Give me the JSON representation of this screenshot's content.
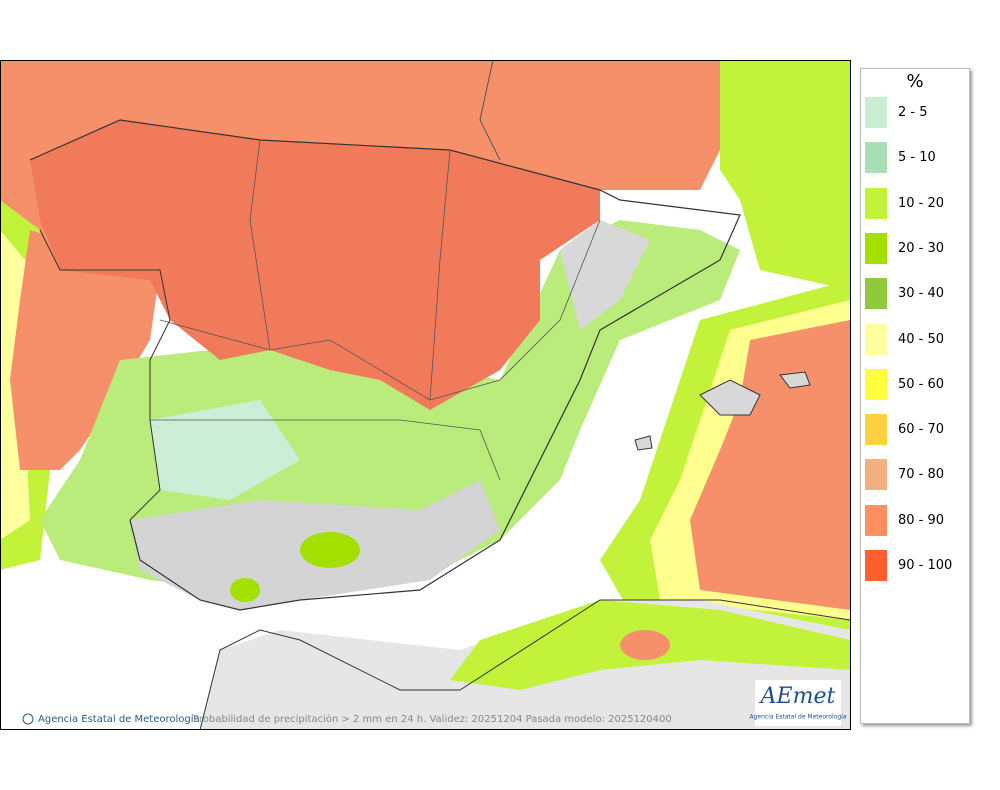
{
  "legend": {
    "title": "%",
    "items": [
      {
        "label": "2 - 5",
        "color": "#c9eed3"
      },
      {
        "label": "5 - 10",
        "color": "#a9dfb4"
      },
      {
        "label": "10 - 20",
        "color": "#c2f23a"
      },
      {
        "label": "20 - 30",
        "color": "#a3e000"
      },
      {
        "label": "30 - 40",
        "color": "#8fc93c"
      },
      {
        "label": "40 - 50",
        "color": "#ffffa0"
      },
      {
        "label": "50 - 60",
        "color": "#ffff40"
      },
      {
        "label": "60 - 70",
        "color": "#ffd040"
      },
      {
        "label": "70 - 80",
        "color": "#f2b080"
      },
      {
        "label": "80 - 90",
        "color": "#ff9062"
      },
      {
        "label": "90 - 100",
        "color": "#ff6030"
      }
    ]
  },
  "footer": {
    "agency": "Agencia Estatal de Meteorología",
    "caption": "Probabilidad de precipitación > 2 mm en 24 h. Validez: 20251204 Pasada modelo: 2025120400"
  },
  "logo": {
    "name": "AEmet",
    "subtitle": "Agencia Estatal de Meteorología"
  }
}
